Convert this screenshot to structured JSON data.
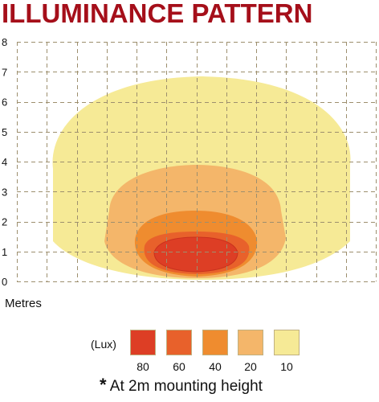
{
  "title": "ILLUMINANCE PATTERN",
  "unit_label": "Metres",
  "legend": {
    "title": "(Lux)",
    "items": [
      {
        "label": "80",
        "color": "#dd3e25"
      },
      {
        "label": "60",
        "color": "#e8612b"
      },
      {
        "label": "40",
        "color": "#ef8c2f"
      },
      {
        "label": "20",
        "color": "#f4b66a"
      },
      {
        "label": "10",
        "color": "#f6ea96"
      }
    ]
  },
  "note": {
    "star": "*",
    "text": "At 2m mounting height"
  },
  "chart_data": {
    "type": "heatmap",
    "title": "ILLUMINANCE PATTERN",
    "ylabel": "Metres",
    "y_ticks": [
      "0",
      "1",
      "2",
      "3",
      "4",
      "5",
      "6",
      "7",
      "8"
    ],
    "ylim": [
      0,
      8
    ],
    "grid": true,
    "contours": [
      {
        "lux": 10,
        "color": "#f6ea96"
      },
      {
        "lux": 20,
        "color": "#f4b66a"
      },
      {
        "lux": 40,
        "color": "#ef8c2f"
      },
      {
        "lux": 60,
        "color": "#e8612b"
      },
      {
        "lux": 80,
        "color": "#dd3e25"
      }
    ]
  }
}
